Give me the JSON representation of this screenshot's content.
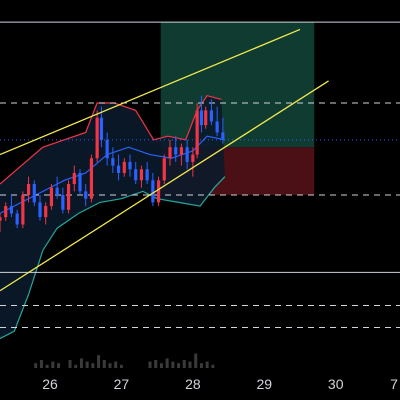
{
  "colors": {
    "background": "#000000",
    "up": "#f23645",
    "down": "#2962ff",
    "band_upper": "#f23645",
    "band_middle": "#2962ff",
    "band_lower": "#26a69a",
    "band_fill": "#0b1a2a",
    "channel": "#f2e94e",
    "level_solid": "#d1d4dc",
    "level_dashed": "#d1d4dc",
    "current_price": "#2962ff",
    "target_zone": "#0f3b30",
    "stop_zone": "#4a1016",
    "volume": "#3a3a3a",
    "axis_text": "#d1d4dc"
  },
  "chart_data": {
    "type": "candlestick",
    "x_axis": {
      "ticks": [
        "26",
        "27",
        "28",
        "29",
        "30",
        "7"
      ],
      "range": [
        25.3,
        30.9
      ]
    },
    "y_range": [
      0,
      100
    ],
    "grid": false,
    "legend": "none",
    "horizontal_levels": [
      {
        "value": 94,
        "style": "solid"
      },
      {
        "value": 72,
        "style": "dashed"
      },
      {
        "value": 47,
        "style": "dashed"
      },
      {
        "value": 26,
        "style": "solid"
      },
      {
        "value": 17,
        "style": "dashed"
      },
      {
        "value": 11,
        "style": "dashed"
      }
    ],
    "current_price": 62,
    "channel_lines": [
      {
        "from": [
          25.3,
          58
        ],
        "to": [
          29.5,
          92
        ]
      },
      {
        "from": [
          25.3,
          21
        ],
        "to": [
          29.9,
          78
        ]
      }
    ],
    "position": {
      "start": 27.55,
      "end": 29.7,
      "entry": 60,
      "target": 94,
      "stop": 47
    },
    "candles": [
      [
        25.3,
        40,
        42,
        37,
        41
      ],
      [
        25.38,
        41,
        45,
        40,
        44
      ],
      [
        25.46,
        44,
        47,
        41,
        42
      ],
      [
        25.54,
        42,
        43,
        38,
        39
      ],
      [
        25.62,
        39,
        48,
        38,
        47
      ],
      [
        25.7,
        47,
        52,
        45,
        50
      ],
      [
        25.78,
        50,
        51,
        44,
        45
      ],
      [
        25.86,
        45,
        47,
        40,
        41
      ],
      [
        25.94,
        41,
        45,
        39,
        44
      ],
      [
        26.02,
        44,
        50,
        43,
        49
      ],
      [
        26.1,
        49,
        52,
        46,
        47
      ],
      [
        26.18,
        47,
        49,
        42,
        43
      ],
      [
        26.26,
        43,
        51,
        42,
        50
      ],
      [
        26.34,
        50,
        55,
        48,
        53
      ],
      [
        26.42,
        53,
        54,
        47,
        48
      ],
      [
        26.5,
        48,
        50,
        44,
        46
      ],
      [
        26.58,
        46,
        58,
        45,
        57
      ],
      [
        26.66,
        57,
        70,
        56,
        68
      ],
      [
        26.72,
        68,
        71,
        60,
        62
      ],
      [
        26.8,
        62,
        64,
        55,
        57
      ],
      [
        26.88,
        57,
        60,
        53,
        55
      ],
      [
        26.96,
        55,
        58,
        51,
        53
      ],
      [
        27.04,
        53,
        57,
        52,
        56
      ],
      [
        27.12,
        56,
        58,
        52,
        54
      ],
      [
        27.2,
        54,
        56,
        50,
        51
      ],
      [
        27.28,
        51,
        55,
        49,
        54
      ],
      [
        27.36,
        54,
        56,
        50,
        51
      ],
      [
        27.44,
        51,
        53,
        44,
        45
      ],
      [
        27.52,
        45,
        52,
        44,
        51
      ],
      [
        27.6,
        51,
        58,
        50,
        57
      ],
      [
        27.68,
        57,
        62,
        55,
        60
      ],
      [
        27.76,
        60,
        63,
        56,
        58
      ],
      [
        27.84,
        58,
        61,
        55,
        60
      ],
      [
        27.92,
        60,
        62,
        54,
        56
      ],
      [
        28.0,
        56,
        60,
        52,
        58
      ],
      [
        28.06,
        58,
        72,
        57,
        70
      ],
      [
        28.12,
        70,
        74,
        64,
        66
      ],
      [
        28.18,
        66,
        71,
        65,
        70
      ],
      [
        28.26,
        70,
        73,
        66,
        67
      ],
      [
        28.34,
        67,
        71,
        63,
        64
      ],
      [
        28.42,
        64,
        68,
        61,
        62
      ]
    ],
    "bands": {
      "upper": [
        [
          25.3,
          50
        ],
        [
          25.6,
          55
        ],
        [
          25.9,
          60
        ],
        [
          26.2,
          62
        ],
        [
          26.5,
          64
        ],
        [
          26.66,
          72
        ],
        [
          26.9,
          72
        ],
        [
          27.2,
          70
        ],
        [
          27.45,
          62
        ],
        [
          27.65,
          63
        ],
        [
          27.9,
          62
        ],
        [
          28.06,
          70
        ],
        [
          28.2,
          74
        ],
        [
          28.4,
          73
        ]
      ],
      "middle": [
        [
          25.3,
          42
        ],
        [
          25.6,
          45
        ],
        [
          25.9,
          48
        ],
        [
          26.2,
          51
        ],
        [
          26.5,
          53
        ],
        [
          26.8,
          58
        ],
        [
          27.1,
          60
        ],
        [
          27.4,
          58
        ],
        [
          27.7,
          57
        ],
        [
          28.0,
          59
        ],
        [
          28.2,
          63
        ],
        [
          28.45,
          62
        ]
      ],
      "lower": [
        [
          25.3,
          8
        ],
        [
          25.5,
          10
        ],
        [
          25.7,
          20
        ],
        [
          25.9,
          32
        ],
        [
          26.1,
          38
        ],
        [
          26.4,
          42
        ],
        [
          26.7,
          45
        ],
        [
          27.0,
          46
        ],
        [
          27.3,
          48
        ],
        [
          27.5,
          46
        ],
        [
          27.8,
          45
        ],
        [
          28.1,
          44
        ],
        [
          28.3,
          49
        ],
        [
          28.45,
          52
        ]
      ]
    },
    "volume": [
      [
        25.8,
        3
      ],
      [
        25.88,
        5
      ],
      [
        25.96,
        2
      ],
      [
        26.04,
        4
      ],
      [
        26.12,
        3
      ],
      [
        26.28,
        5
      ],
      [
        26.36,
        2
      ],
      [
        26.44,
        6
      ],
      [
        26.52,
        4
      ],
      [
        26.6,
        3
      ],
      [
        26.68,
        8
      ],
      [
        26.76,
        5
      ],
      [
        26.84,
        3
      ],
      [
        26.92,
        4
      ],
      [
        27.0,
        2
      ],
      [
        27.4,
        4
      ],
      [
        27.48,
        5
      ],
      [
        27.56,
        3
      ],
      [
        27.64,
        6
      ],
      [
        27.72,
        4
      ],
      [
        27.8,
        3
      ],
      [
        27.88,
        5
      ],
      [
        27.96,
        4
      ],
      [
        28.04,
        9
      ],
      [
        28.12,
        3
      ],
      [
        28.2,
        4
      ],
      [
        28.28,
        2
      ]
    ]
  }
}
